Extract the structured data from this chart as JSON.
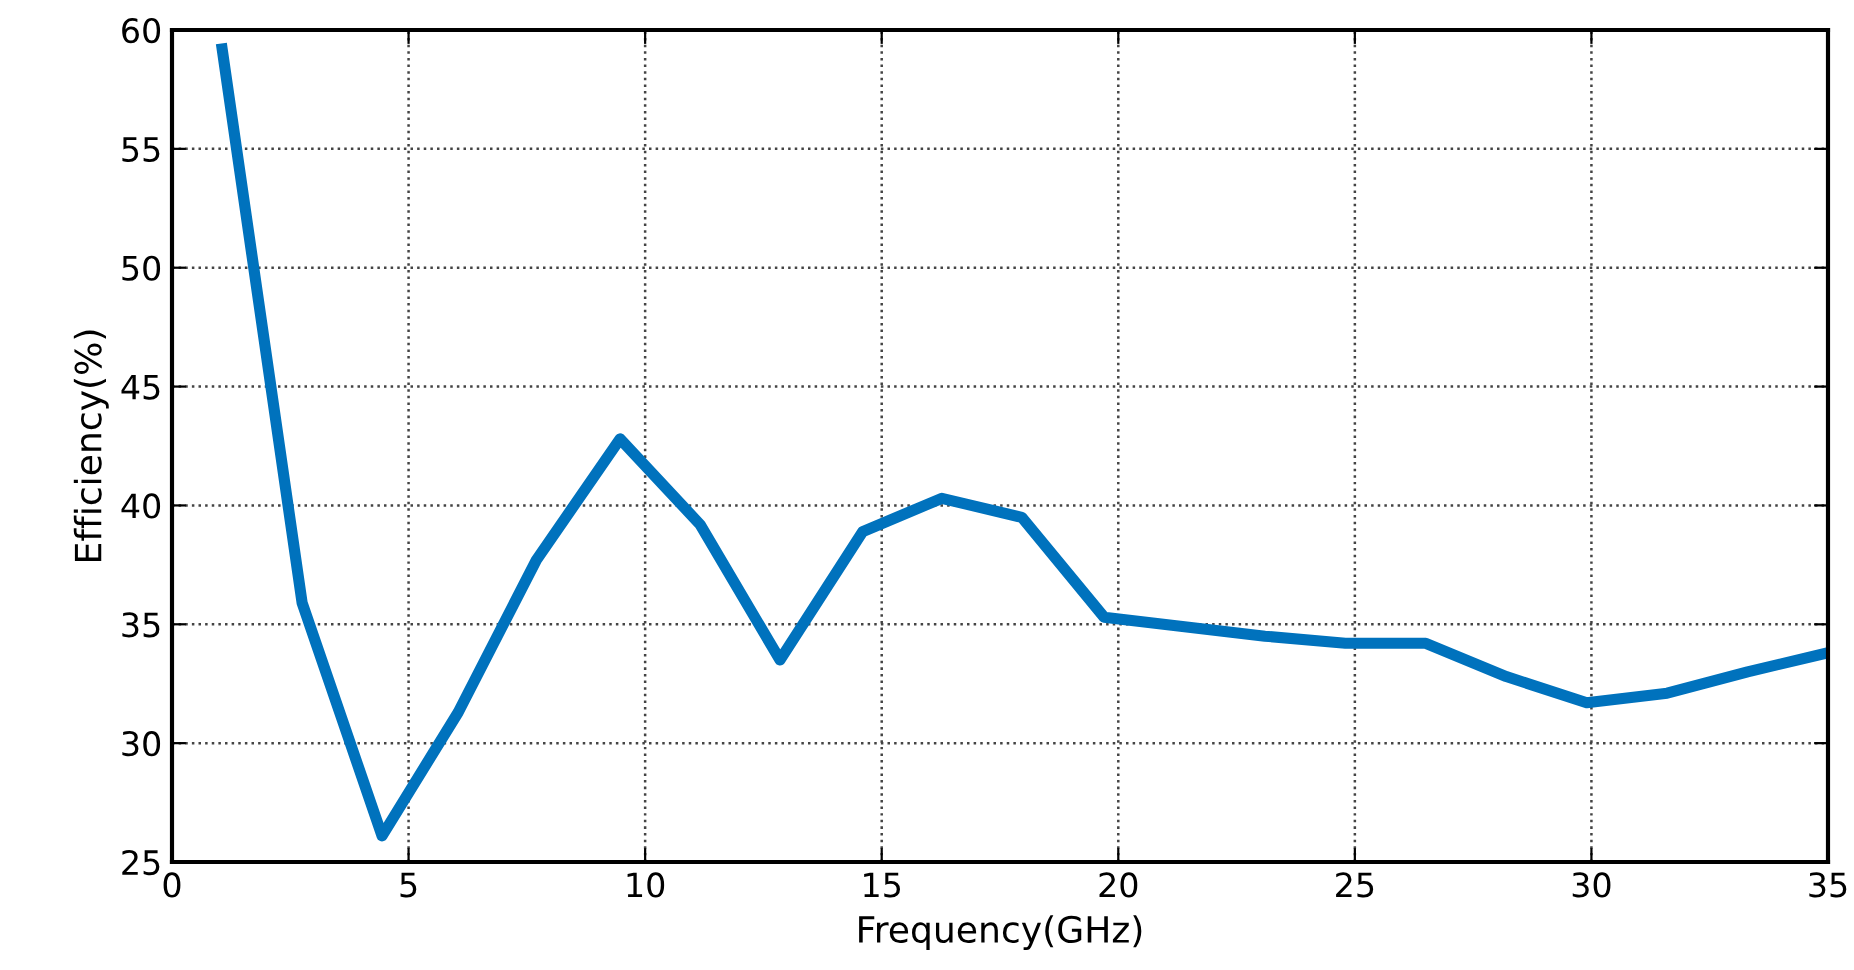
{
  "chart_data": {
    "type": "line",
    "xlabel": "Frequency(GHz)",
    "ylabel": "Efficiency(%)",
    "x": [
      1.06,
      2.75,
      4.44,
      6.05,
      7.7,
      9.47,
      11.16,
      12.85,
      14.6,
      16.27,
      17.96,
      19.7,
      21.4,
      23.1,
      24.8,
      26.5,
      28.2,
      29.9,
      31.6,
      33.3,
      35
    ],
    "series": [
      {
        "color": "#0072bd",
        "values": [
          59.2,
          35.9,
          26.1,
          31.3,
          37.7,
          42.8,
          39.2,
          33.5,
          38.9,
          40.3,
          39.5,
          35.3,
          34.9,
          34.5,
          34.2,
          34.2,
          32.8,
          31.7,
          32.1,
          33.0,
          33.8
        ]
      }
    ],
    "xlim": [
      0,
      35
    ],
    "xticks": [
      0,
      5,
      10,
      15,
      20,
      25,
      30,
      35
    ],
    "ylim": [
      25,
      60
    ],
    "yticks": [
      25,
      30,
      35,
      40,
      45,
      50,
      55,
      60
    ],
    "grid": true,
    "marker": "none",
    "line_style": "solid",
    "legend": false
  }
}
